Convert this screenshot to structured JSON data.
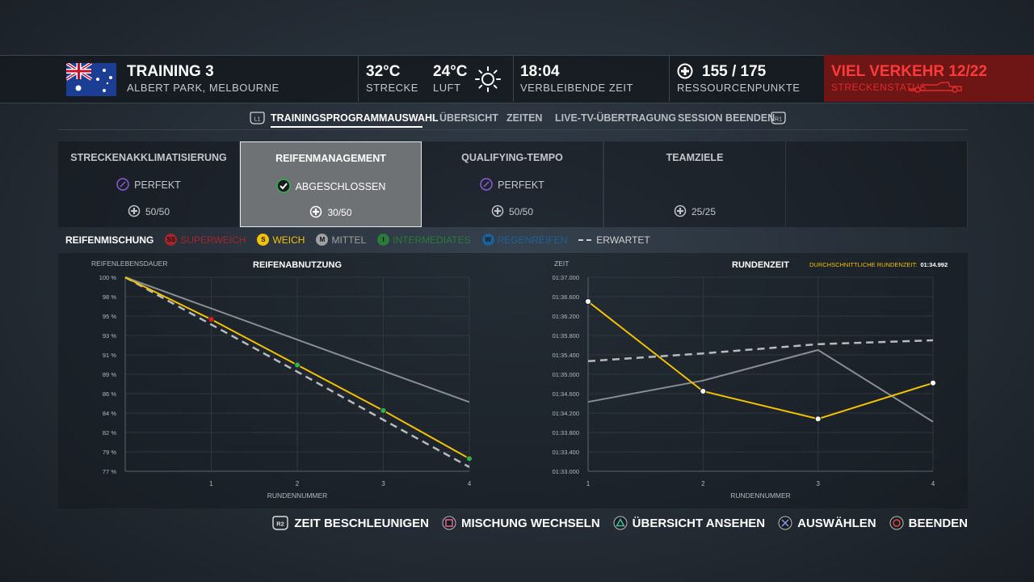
{
  "header": {
    "session": "TRAINING 3",
    "track": "ALBERT PARK, MELBOURNE",
    "track_temp": "32°C",
    "track_temp_label": "STRECKE",
    "air_temp": "24°C",
    "air_temp_label": "LUFT",
    "time_left": "18:04",
    "time_left_label": "VERBLEIBENDE ZEIT",
    "resources": "155 / 175",
    "resources_label": "RESSOURCENPUNKTE",
    "traffic": "VIEL VERKEHR 12/22",
    "traffic_label": "STRECKENSTATUS"
  },
  "tabs": {
    "left_button": "L1",
    "right_button": "R1",
    "items": [
      "TRAININGSPROGRAMMAUSWAHL",
      "ÜBERSICHT",
      "ZEITEN",
      "LIVE-TV-ÜBERTRAGUNG",
      "SESSION BEENDEN"
    ]
  },
  "programs": [
    {
      "title": "STRECKENAKKLIMATISIERUNG",
      "status": "PERFEKT",
      "points": "50/50"
    },
    {
      "title": "REIFENMANAGEMENT",
      "status": "ABGESCHLOSSEN",
      "points": "30/50"
    },
    {
      "title": "QUALIFYING-TEMPO",
      "status": "PERFEKT",
      "points": "50/50"
    },
    {
      "title": "TEAMZIELE",
      "points": "25/25"
    }
  ],
  "legend": {
    "title": "REIFENMISCHUNG",
    "items": [
      {
        "badge": "SS",
        "label": "SUPERWEICH",
        "color": "#a3262a"
      },
      {
        "badge": "S",
        "label": "WEICH",
        "color": "#f2c200"
      },
      {
        "badge": "M",
        "label": "MITTEL",
        "color": "#a0a0a0"
      },
      {
        "badge": "I",
        "label": "INTERMEDIATES",
        "color": "#2a7a3a"
      },
      {
        "badge": "W",
        "label": "REGENREIFEN",
        "color": "#1d5f96"
      },
      {
        "label": "ERWARTET",
        "color": "#d0d0d0"
      }
    ]
  },
  "chart_data": [
    {
      "type": "line",
      "title": "REIFENABNUTZUNG",
      "y_label": "REIFENLEBENSDAUER",
      "x_label": "RUNDENNUMMER",
      "x": [
        0,
        1,
        2,
        3,
        4
      ],
      "xlim": [
        0,
        4
      ],
      "xticks": [
        1,
        2,
        3,
        4
      ],
      "ylim": [
        77,
        100
      ],
      "yticks": [
        {
          "value": 100,
          "label": "100 %"
        },
        {
          "value": 97.7,
          "label": "98 %"
        },
        {
          "value": 95.4,
          "label": "95 %"
        },
        {
          "value": 93.1,
          "label": "93 %"
        },
        {
          "value": 90.8,
          "label": "91 %"
        },
        {
          "value": 88.5,
          "label": "89 %"
        },
        {
          "value": 86.2,
          "label": "86 %"
        },
        {
          "value": 83.9,
          "label": "84 %"
        },
        {
          "value": 81.6,
          "label": "82 %"
        },
        {
          "value": 79.3,
          "label": "79 %"
        },
        {
          "value": 77,
          "label": "77 %"
        }
      ],
      "grid": true,
      "series": [
        {
          "color": "#8a8d92",
          "dashed": false,
          "values": [
            100,
            96.3,
            92.6,
            88.9,
            85.2
          ]
        },
        {
          "color": "#b8babd",
          "dashed": true,
          "values": [
            100,
            94.4,
            88.8,
            83.1,
            77.5
          ]
        },
        {
          "color": "#f2c200",
          "dashed": false,
          "values": [
            100,
            95.0,
            89.6,
            84.2,
            78.5
          ],
          "marker_colors": [
            null,
            "#e02020",
            "#2fb34a",
            "#2fb34a",
            "#2fb34a"
          ]
        }
      ]
    },
    {
      "type": "line",
      "title": "RUNDENZEIT",
      "y_label": "ZEIT",
      "x_label": "RUNDENNUMMER",
      "average_label": "DURCHSCHNITTLICHE RUNDENZEIT:",
      "average_value": "01:34.992",
      "x": [
        1,
        2,
        3,
        4
      ],
      "xlim": [
        1,
        4
      ],
      "xticks": [
        1,
        2,
        3,
        4
      ],
      "ylim": [
        93,
        97
      ],
      "yticks": [
        {
          "value": 97,
          "label": "01:37.000"
        },
        {
          "value": 96.6,
          "label": "01:36.600"
        },
        {
          "value": 96.2,
          "label": "01:36.200"
        },
        {
          "value": 95.8,
          "label": "01:35.800"
        },
        {
          "value": 95.4,
          "label": "01:35.400"
        },
        {
          "value": 95,
          "label": "01:35.000"
        },
        {
          "value": 94.6,
          "label": "01:34.600"
        },
        {
          "value": 94.2,
          "label": "01:34.200"
        },
        {
          "value": 93.8,
          "label": "01:33.800"
        },
        {
          "value": 93.4,
          "label": "01:33.400"
        },
        {
          "value": 93,
          "label": "01:33.000"
        }
      ],
      "grid": true,
      "series": [
        {
          "color": "#8a8d92",
          "dashed": false,
          "values": [
            94.43,
            94.87,
            95.5,
            94.02
          ]
        },
        {
          "color": "#b8babd",
          "dashed": true,
          "values": [
            95.27,
            95.43,
            95.62,
            95.7
          ]
        },
        {
          "color": "#f2c200",
          "dashed": false,
          "values": [
            96.5,
            94.65,
            94.08,
            94.82
          ],
          "marker_colors": [
            "#ffffff",
            "#ffffff",
            "#ffffff",
            "#ffffff"
          ]
        }
      ]
    }
  ],
  "footer": {
    "r2_icon": "R2",
    "items": [
      "ZEIT BESCHLEUNIGEN",
      "MISCHUNG WECHSELN",
      "ÜBERSICHT ANSEHEN",
      "AUSWÄHLEN",
      "BEENDEN"
    ]
  }
}
